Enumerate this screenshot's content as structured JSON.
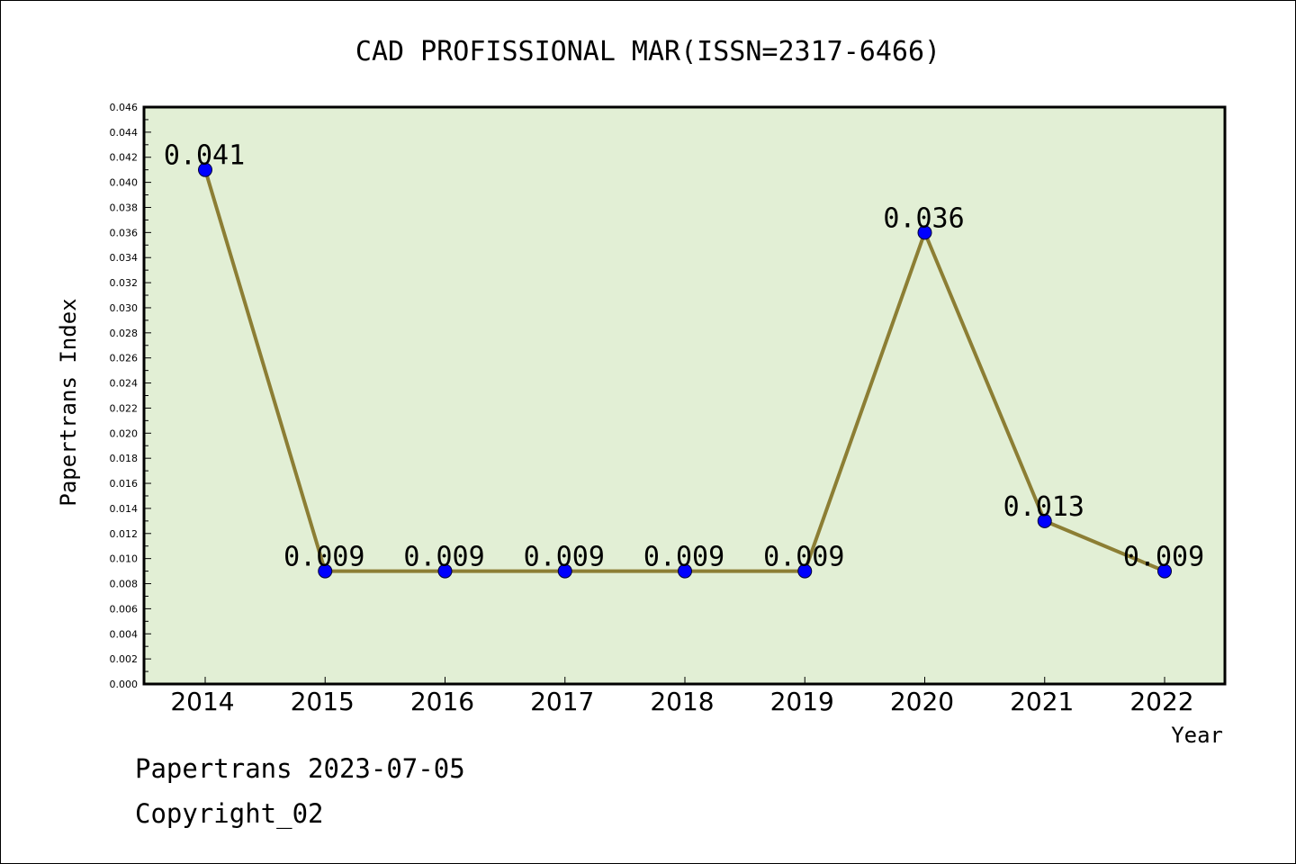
{
  "chart_data": {
    "type": "line",
    "title": "CAD PROFISSIONAL MAR(ISSN=2317-6466)",
    "xlabel": "Year",
    "ylabel": "Papertrans Index",
    "categories": [
      "2014",
      "2015",
      "2016",
      "2017",
      "2018",
      "2019",
      "2020",
      "2021",
      "2022"
    ],
    "series": [
      {
        "values": [
          0.041,
          0.009,
          0.009,
          0.009,
          0.009,
          0.009,
          0.036,
          0.013,
          0.009
        ],
        "labels": [
          "0.041",
          "0.009",
          "0.009",
          "0.009",
          "0.009",
          "0.009",
          "0.036",
          "0.013",
          "0.009"
        ]
      }
    ],
    "ylim": [
      0,
      0.046
    ],
    "ytick_step": 0.002,
    "grid": false,
    "legend": "none",
    "colors": {
      "plot_background": "#e2efd5",
      "line": "#8c7e34",
      "marker": "#0000ff"
    }
  },
  "footer": {
    "line1": "Papertrans 2023-07-05",
    "line2": "Copyright_02"
  }
}
